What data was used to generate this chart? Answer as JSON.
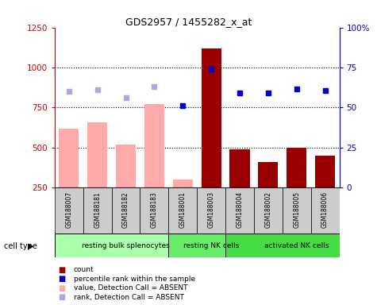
{
  "title": "GDS2957 / 1455282_x_at",
  "samples": [
    "GSM188007",
    "GSM188181",
    "GSM188182",
    "GSM188183",
    "GSM188001",
    "GSM188003",
    "GSM188004",
    "GSM188002",
    "GSM188005",
    "GSM188006"
  ],
  "groups": [
    {
      "label": "resting bulk splenocytes",
      "start": 0,
      "end": 4,
      "color": "#aaffaa"
    },
    {
      "label": "resting NK cells",
      "start": 4,
      "end": 6,
      "color": "#66ee66"
    },
    {
      "label": "activated NK cells",
      "start": 6,
      "end": 10,
      "color": "#44dd44"
    }
  ],
  "bar_values": [
    620,
    660,
    520,
    770,
    300,
    1120,
    490,
    410,
    500,
    450
  ],
  "bar_absent": [
    true,
    true,
    true,
    true,
    true,
    false,
    false,
    false,
    false,
    false
  ],
  "rank_values": [
    850,
    860,
    810,
    880,
    760,
    990,
    840,
    840,
    865,
    855
  ],
  "rank_absent": [
    true,
    true,
    true,
    true,
    false,
    false,
    false,
    false,
    false,
    false
  ],
  "ylim_left": [
    250,
    1250
  ],
  "ylim_right": [
    0,
    100
  ],
  "yticks_left": [
    250,
    500,
    750,
    1000,
    1250
  ],
  "yticks_right": [
    0,
    25,
    50,
    75,
    100
  ],
  "ytick_right_labels": [
    "0",
    "25",
    "50",
    "75",
    "100%"
  ],
  "color_bar_present": "#990000",
  "color_bar_absent": "#ffaaaa",
  "color_rank_present": "#0000cc",
  "color_rank_absent": "#aaaadd",
  "bg_color": "#ffffff",
  "bar_width": 0.7,
  "grid_yticks": [
    500,
    750,
    1000
  ]
}
